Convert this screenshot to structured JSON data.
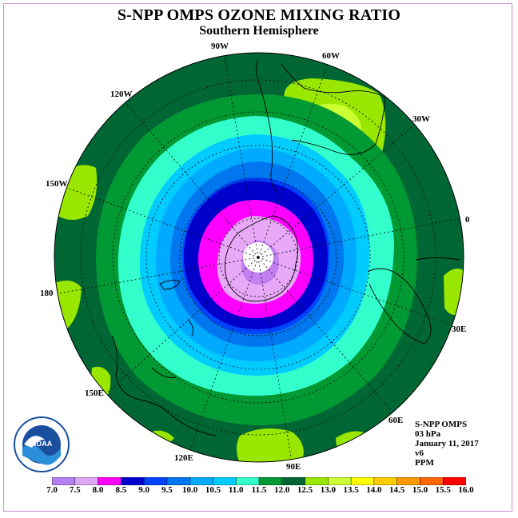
{
  "header": {
    "title": "S-NPP OMPS OZONE MIXING RATIO",
    "subtitle": "Southern Hemisphere"
  },
  "map": {
    "projection": "polar-stereographic-south",
    "longitude_labels": [
      "90W",
      "60W",
      "120W",
      "30W",
      "150W",
      "0",
      "180",
      "30E",
      "150E",
      "60E",
      "120E",
      "90E"
    ],
    "colors": {
      "outer": "#006633",
      "lime": "#99e600",
      "yellow_green": "#ccff33",
      "green": "#009933",
      "cyan": "#33ffcc",
      "teal": "#00ccff",
      "sky": "#0099ff",
      "azure": "#0077ee",
      "blue": "#0033ff",
      "deep_blue": "#0000cc",
      "magenta": "#ff00ff",
      "pale_purple": "#e8a8f8",
      "purple": "#c080f0"
    }
  },
  "info": {
    "instrument": "S-NPP OMPS",
    "level": "03 hPa",
    "date": "January 11, 2017",
    "version": "v6",
    "units": "PPM"
  },
  "logo": {
    "name": "NOAA"
  },
  "colorbar": {
    "ticks": [
      "7.0",
      "7.5",
      "8.0",
      "8.5",
      "9.0",
      "9.5",
      "10.0",
      "10.5",
      "11.0",
      "11.5",
      "12.0",
      "12.5",
      "13.0",
      "13.5",
      "14.0",
      "14.5",
      "15.0",
      "15.5",
      "16.0"
    ],
    "colors": [
      "#b57ef0",
      "#dca8f4",
      "#ff00ff",
      "#0000cc",
      "#0044ff",
      "#0077ee",
      "#00aaff",
      "#00ccff",
      "#33ffcc",
      "#009933",
      "#006633",
      "#99e600",
      "#ccff33",
      "#ffff00",
      "#ffcc00",
      "#ff9900",
      "#ff6600",
      "#ff0000",
      "#996633"
    ]
  }
}
